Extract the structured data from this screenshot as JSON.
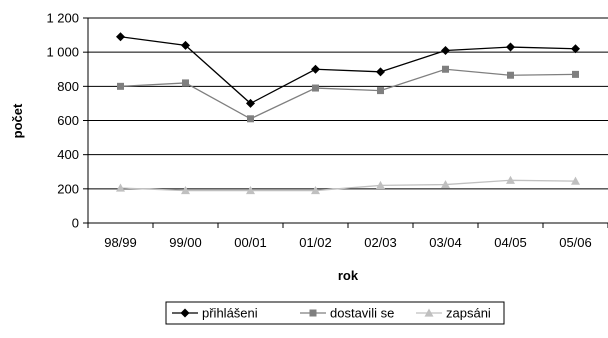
{
  "chart_data": {
    "type": "line",
    "title": "",
    "xlabel": "rok",
    "ylabel": "počet",
    "categories": [
      "98/99",
      "99/00",
      "00/01",
      "01/02",
      "02/03",
      "03/04",
      "04/05",
      "05/06"
    ],
    "ylim": [
      0,
      1200
    ],
    "yticks": [
      0,
      200,
      400,
      600,
      800,
      1000,
      1200
    ],
    "ytick_labels": [
      "0",
      "200",
      "400",
      "600",
      "800",
      "1 000",
      "1 200"
    ],
    "grid": "horizontal",
    "legend_position": "bottom",
    "series": [
      {
        "name": "přihlášeni",
        "marker": "diamond",
        "color": "#000000",
        "values": [
          1090,
          1040,
          700,
          900,
          885,
          1010,
          1030,
          1020
        ]
      },
      {
        "name": "dostavili se",
        "marker": "square",
        "color": "#7f7f7f",
        "values": [
          800,
          820,
          610,
          790,
          775,
          900,
          865,
          870
        ]
      },
      {
        "name": "zapsáni",
        "marker": "triangle",
        "color": "#c0c0c0",
        "values": [
          205,
          190,
          190,
          190,
          220,
          225,
          250,
          245
        ]
      }
    ]
  }
}
